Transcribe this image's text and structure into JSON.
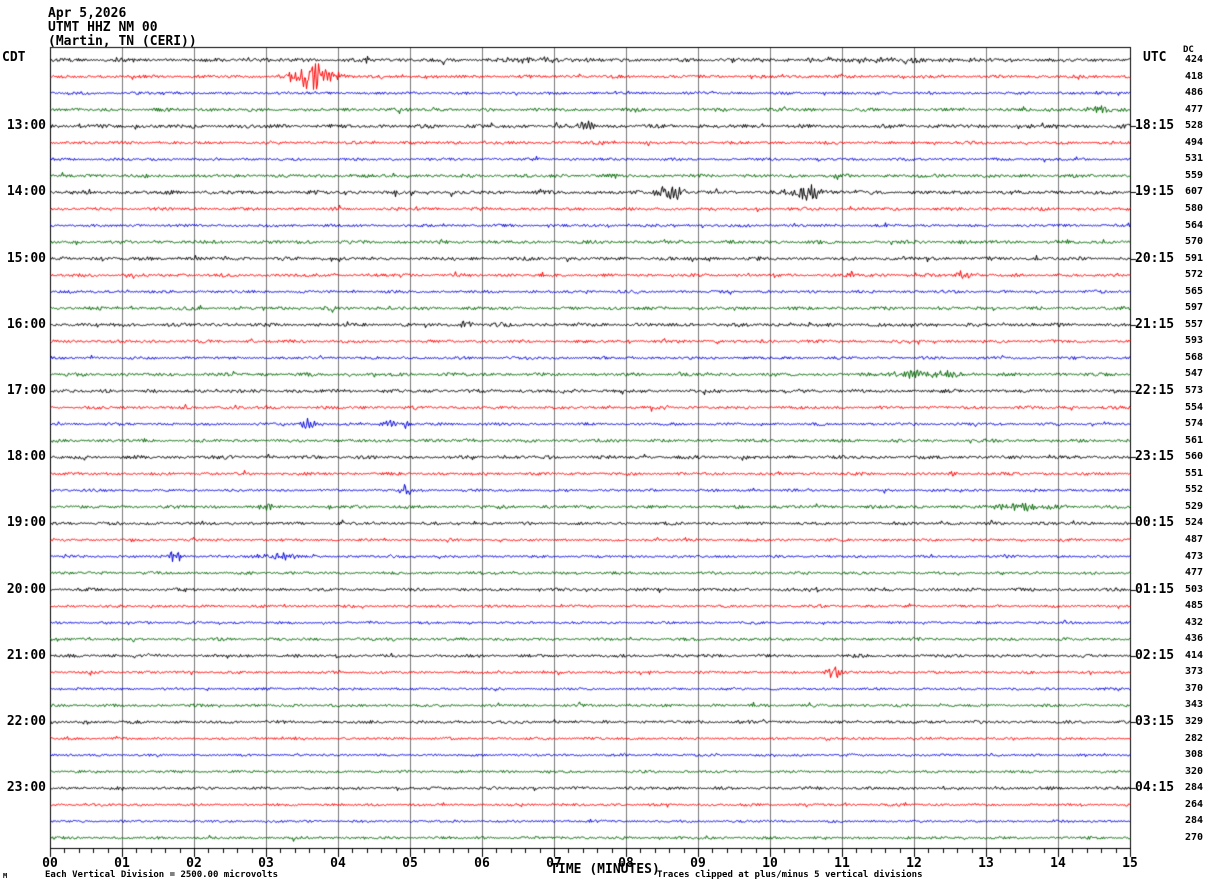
{
  "header": {
    "date": "Apr 5,2026",
    "station": "UTMT HHZ NM 00",
    "location": "(Martin, TN (CERI))",
    "left_tz": "CDT",
    "right_tz": "UTC",
    "dc_label": "DC"
  },
  "x_axis": {
    "label": "TIME (MINUTES)",
    "ticks": [
      "00",
      "01",
      "02",
      "03",
      "04",
      "05",
      "06",
      "07",
      "08",
      "09",
      "10",
      "11",
      "12",
      "13",
      "14",
      "15"
    ],
    "minutes_min": 0,
    "minutes_max": 15,
    "minor_per_major": 5
  },
  "footer": {
    "left_note": "Each Vertical Division = 2500.00 microvolts",
    "right_note": "Traces clipped at plus/minus 5 vertical divisions",
    "watermark": "M"
  },
  "chart_data": {
    "type": "line",
    "title": "UTMT HHZ NM 00 (Martin, TN (CERI)) helicorder, Apr 5,2026",
    "xlabel": "TIME (MINUTES)",
    "x_range": [
      0,
      15
    ],
    "line_duration_minutes": 15,
    "traces_per_hour": 4,
    "color_cycle": [
      "black",
      "red",
      "blue",
      "green"
    ],
    "grid": true,
    "colors": {
      "black": "#000000",
      "red": "#ff0000",
      "blue": "#0000dd",
      "green": "#006600",
      "grid": "#777777"
    },
    "rows": [
      {
        "cdt": "",
        "utc": "",
        "color": "black",
        "dc": 424,
        "noise": 1.5
      },
      {
        "cdt": "",
        "utc": "",
        "color": "red",
        "dc": 418,
        "noise": 1.25
      },
      {
        "cdt": "",
        "utc": "",
        "color": "blue",
        "dc": 486,
        "noise": 1.1
      },
      {
        "cdt": "",
        "utc": "",
        "color": "green",
        "dc": 477,
        "noise": 1.35
      },
      {
        "cdt": "13:00",
        "utc": "18:15",
        "color": "black",
        "dc": 528,
        "noise": 1.5
      },
      {
        "cdt": "",
        "utc": "",
        "color": "red",
        "dc": 494,
        "noise": 1.25
      },
      {
        "cdt": "",
        "utc": "",
        "color": "blue",
        "dc": 531,
        "noise": 1.1
      },
      {
        "cdt": "",
        "utc": "",
        "color": "green",
        "dc": 559,
        "noise": 1.35
      },
      {
        "cdt": "14:00",
        "utc": "19:15",
        "color": "black",
        "dc": 607,
        "noise": 1.5
      },
      {
        "cdt": "",
        "utc": "",
        "color": "red",
        "dc": 580,
        "noise": 1.25
      },
      {
        "cdt": "",
        "utc": "",
        "color": "blue",
        "dc": 564,
        "noise": 1.1
      },
      {
        "cdt": "",
        "utc": "",
        "color": "green",
        "dc": 570,
        "noise": 1.35
      },
      {
        "cdt": "15:00",
        "utc": "20:15",
        "color": "black",
        "dc": 591,
        "noise": 1.4
      },
      {
        "cdt": "",
        "utc": "",
        "color": "red",
        "dc": 572,
        "noise": 1.25
      },
      {
        "cdt": "",
        "utc": "",
        "color": "blue",
        "dc": 565,
        "noise": 1.1
      },
      {
        "cdt": "",
        "utc": "",
        "color": "green",
        "dc": 597,
        "noise": 1.35
      },
      {
        "cdt": "16:00",
        "utc": "21:15",
        "color": "black",
        "dc": 557,
        "noise": 1.4
      },
      {
        "cdt": "",
        "utc": "",
        "color": "red",
        "dc": 593,
        "noise": 1.25
      },
      {
        "cdt": "",
        "utc": "",
        "color": "blue",
        "dc": 568,
        "noise": 1.1
      },
      {
        "cdt": "",
        "utc": "",
        "color": "green",
        "dc": 547,
        "noise": 1.35
      },
      {
        "cdt": "17:00",
        "utc": "22:15",
        "color": "black",
        "dc": 573,
        "noise": 1.4
      },
      {
        "cdt": "",
        "utc": "",
        "color": "red",
        "dc": 554,
        "noise": 1.2
      },
      {
        "cdt": "",
        "utc": "",
        "color": "blue",
        "dc": 574,
        "noise": 1.1
      },
      {
        "cdt": "",
        "utc": "",
        "color": "green",
        "dc": 561,
        "noise": 1.3
      },
      {
        "cdt": "18:00",
        "utc": "23:15",
        "color": "black",
        "dc": 560,
        "noise": 1.4
      },
      {
        "cdt": "",
        "utc": "",
        "color": "red",
        "dc": 551,
        "noise": 1.2
      },
      {
        "cdt": "",
        "utc": "",
        "color": "blue",
        "dc": 552,
        "noise": 1.05
      },
      {
        "cdt": "",
        "utc": "",
        "color": "green",
        "dc": 529,
        "noise": 1.3
      },
      {
        "cdt": "19:00",
        "utc": "00:15",
        "color": "black",
        "dc": 524,
        "noise": 1.25
      },
      {
        "cdt": "",
        "utc": "",
        "color": "red",
        "dc": 487,
        "noise": 1.05
      },
      {
        "cdt": "",
        "utc": "",
        "color": "blue",
        "dc": 473,
        "noise": 1.0
      },
      {
        "cdt": "",
        "utc": "",
        "color": "green",
        "dc": 477,
        "noise": 1.15
      },
      {
        "cdt": "20:00",
        "utc": "01:15",
        "color": "black",
        "dc": 503,
        "noise": 1.25
      },
      {
        "cdt": "",
        "utc": "",
        "color": "red",
        "dc": 485,
        "noise": 1.05
      },
      {
        "cdt": "",
        "utc": "",
        "color": "blue",
        "dc": 432,
        "noise": 1.0
      },
      {
        "cdt": "",
        "utc": "",
        "color": "green",
        "dc": 436,
        "noise": 1.15
      },
      {
        "cdt": "21:00",
        "utc": "02:15",
        "color": "black",
        "dc": 414,
        "noise": 1.25
      },
      {
        "cdt": "",
        "utc": "",
        "color": "red",
        "dc": 373,
        "noise": 1.05
      },
      {
        "cdt": "",
        "utc": "",
        "color": "blue",
        "dc": 370,
        "noise": 1.0
      },
      {
        "cdt": "",
        "utc": "",
        "color": "green",
        "dc": 343,
        "noise": 1.15
      },
      {
        "cdt": "22:00",
        "utc": "03:15",
        "color": "black",
        "dc": 329,
        "noise": 1.2
      },
      {
        "cdt": "",
        "utc": "",
        "color": "red",
        "dc": 282,
        "noise": 1.0
      },
      {
        "cdt": "",
        "utc": "",
        "color": "blue",
        "dc": 308,
        "noise": 0.95
      },
      {
        "cdt": "",
        "utc": "",
        "color": "green",
        "dc": 320,
        "noise": 1.1
      },
      {
        "cdt": "23:00",
        "utc": "04:15",
        "color": "black",
        "dc": 284,
        "noise": 1.2
      },
      {
        "cdt": "",
        "utc": "",
        "color": "red",
        "dc": 264,
        "noise": 1.0
      },
      {
        "cdt": "",
        "utc": "",
        "color": "blue",
        "dc": 284,
        "noise": 0.95
      },
      {
        "cdt": "",
        "utc": "",
        "color": "green",
        "dc": 270,
        "noise": 1.1
      }
    ],
    "events": [
      {
        "row": 0,
        "minute": 6.8,
        "width": 0.35,
        "amp": 2.2
      },
      {
        "row": 0,
        "minute": 11.3,
        "width": 1.0,
        "amp": 1.6
      },
      {
        "row": 1,
        "minute": 3.65,
        "width": 0.2,
        "amp": 12
      },
      {
        "row": 3,
        "minute": 14.55,
        "width": 0.35,
        "amp": 2.2
      },
      {
        "row": 4,
        "minute": 7.45,
        "width": 0.08,
        "amp": 3.5
      },
      {
        "row": 8,
        "minute": 8.62,
        "width": 0.15,
        "amp": 6
      },
      {
        "row": 8,
        "minute": 10.55,
        "width": 0.18,
        "amp": 6
      },
      {
        "row": 13,
        "minute": 11.1,
        "width": 0.08,
        "amp": 2.5
      },
      {
        "row": 13,
        "minute": 12.7,
        "width": 0.1,
        "amp": 3.5
      },
      {
        "row": 16,
        "minute": 5.78,
        "width": 0.07,
        "amp": 3
      },
      {
        "row": 19,
        "minute": 12.2,
        "width": 0.4,
        "amp": 3.2
      },
      {
        "row": 22,
        "minute": 3.6,
        "width": 0.1,
        "amp": 5
      },
      {
        "row": 22,
        "minute": 4.8,
        "width": 0.13,
        "amp": 4.5
      },
      {
        "row": 26,
        "minute": 4.93,
        "width": 0.07,
        "amp": 4
      },
      {
        "row": 27,
        "minute": 3.0,
        "width": 0.07,
        "amp": 2.8
      },
      {
        "row": 27,
        "minute": 13.45,
        "width": 0.35,
        "amp": 2.8
      },
      {
        "row": 30,
        "minute": 1.75,
        "width": 0.09,
        "amp": 4
      },
      {
        "row": 30,
        "minute": 3.2,
        "width": 0.3,
        "amp": 2.8
      },
      {
        "row": 37,
        "minute": 10.9,
        "width": 0.09,
        "amp": 5.5
      }
    ]
  }
}
